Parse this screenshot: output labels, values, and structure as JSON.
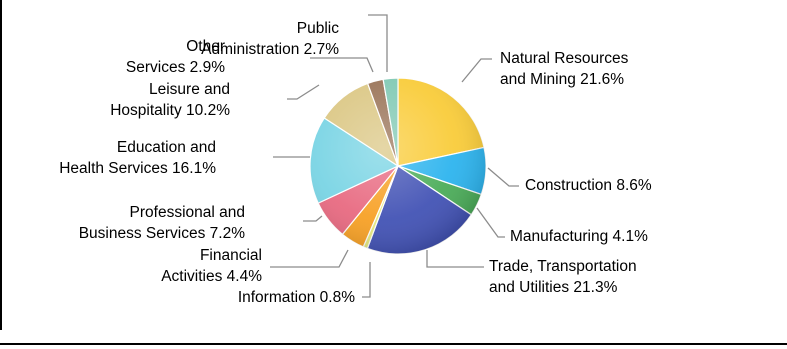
{
  "chart_data": {
    "type": "pie",
    "title": "",
    "unit": "%",
    "start_angle_deg": -90,
    "direction": "clockwise",
    "slices": [
      {
        "label_lines": [
          "Natural Resources",
          "and Mining 21.6%"
        ],
        "value": 21.6,
        "color": "#f9cc3a"
      },
      {
        "label_lines": [
          "Construction 8.6%"
        ],
        "value": 8.6,
        "color": "#2db4ee"
      },
      {
        "label_lines": [
          "Manufacturing 4.1%"
        ],
        "value": 4.1,
        "color": "#4cad5a"
      },
      {
        "label_lines": [
          "Trade, Transportation",
          "and Utilities 21.3%"
        ],
        "value": 21.3,
        "color": "#4353b5"
      },
      {
        "label_lines": [
          "Information 0.8%"
        ],
        "value": 0.8,
        "color": "#e7e97e"
      },
      {
        "label_lines": [
          "Financial",
          "Activities 4.4%"
        ],
        "value": 4.4,
        "color": "#f7a126"
      },
      {
        "label_lines": [
          "Professional and",
          "Business Services 7.2%"
        ],
        "value": 7.2,
        "color": "#e86a81"
      },
      {
        "label_lines": [
          "Education and",
          "Health Services 16.1%"
        ],
        "value": 16.1,
        "color": "#79d4e4"
      },
      {
        "label_lines": [
          "Leisure and",
          "Hospitality 10.2%"
        ],
        "value": 10.2,
        "color": "#dbc784"
      },
      {
        "label_lines": [
          "Other",
          "Services 2.9%"
        ],
        "value": 2.9,
        "color": "#9a7458"
      },
      {
        "label_lines": [
          "Public",
          "Administration 2.7%"
        ],
        "value": 2.7,
        "color": "#81c9b4"
      }
    ]
  }
}
